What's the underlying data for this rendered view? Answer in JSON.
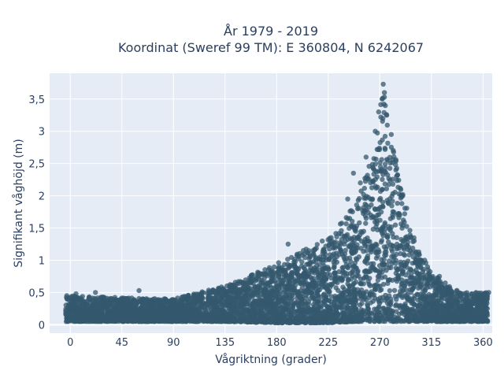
{
  "chart_data": {
    "type": "scatter",
    "title_line1": "År 1979 - 2019",
    "title_line2": "Koordinat (Sweref 99 TM): E 360804, N 6242067",
    "xlabel": "Vågriktning (grader)",
    "ylabel": "Signifikant våghöjd (m)",
    "xlim": [
      -18,
      368
    ],
    "ylim": [
      -0.13,
      3.9
    ],
    "x_ticks": [
      0,
      45,
      90,
      135,
      180,
      225,
      270,
      315,
      360
    ],
    "x_tick_labels": [
      "0",
      "45",
      "90",
      "135",
      "180",
      "225",
      "270",
      "315",
      "360"
    ],
    "y_ticks": [
      0,
      0.5,
      1,
      1.5,
      2,
      2.5,
      3,
      3.5
    ],
    "y_tick_labels": [
      "0",
      "0,5",
      "1",
      "1,5",
      "2",
      "2,5",
      "3",
      "3,5"
    ],
    "grid": true,
    "marker_color": "#34586e",
    "envelope": {
      "x": [
        0,
        45,
        90,
        135,
        180,
        225,
        250,
        265,
        272,
        280,
        290,
        300,
        315,
        340,
        360
      ],
      "y_max": [
        0.45,
        0.42,
        0.4,
        0.6,
        0.95,
        1.35,
        1.9,
        2.7,
        3.75,
        2.9,
        2.1,
        1.35,
        0.8,
        0.5,
        0.5
      ],
      "y_min": [
        0.05,
        0.05,
        0.05,
        0.05,
        0.03,
        0.03,
        0.05,
        0.05,
        0.05,
        0.05,
        0.05,
        0.05,
        0.05,
        0.05,
        0.05
      ]
    },
    "outliers": [
      {
        "x": 60,
        "y": 0.53
      },
      {
        "x": 190,
        "y": 1.25
      },
      {
        "x": 228,
        "y": 1.3
      },
      {
        "x": 242,
        "y": 1.95
      },
      {
        "x": 247,
        "y": 2.35
      },
      {
        "x": 253,
        "y": 2.2
      },
      {
        "x": 258,
        "y": 2.6
      },
      {
        "x": 266,
        "y": 3.0
      },
      {
        "x": 269,
        "y": 3.3
      },
      {
        "x": 272,
        "y": 3.5
      },
      {
        "x": 274,
        "y": 3.6
      },
      {
        "x": 273,
        "y": 3.73
      },
      {
        "x": 276,
        "y": 3.25
      },
      {
        "x": 280,
        "y": 2.95
      },
      {
        "x": 284,
        "y": 2.4
      },
      {
        "x": 290,
        "y": 2.0
      },
      {
        "x": 300,
        "y": 1.3
      },
      {
        "x": 322,
        "y": 0.75
      },
      {
        "x": 365,
        "y": 0.5
      },
      {
        "x": -3,
        "y": 0.45
      },
      {
        "x": 5,
        "y": 0.48
      },
      {
        "x": 22,
        "y": 0.5
      }
    ]
  }
}
